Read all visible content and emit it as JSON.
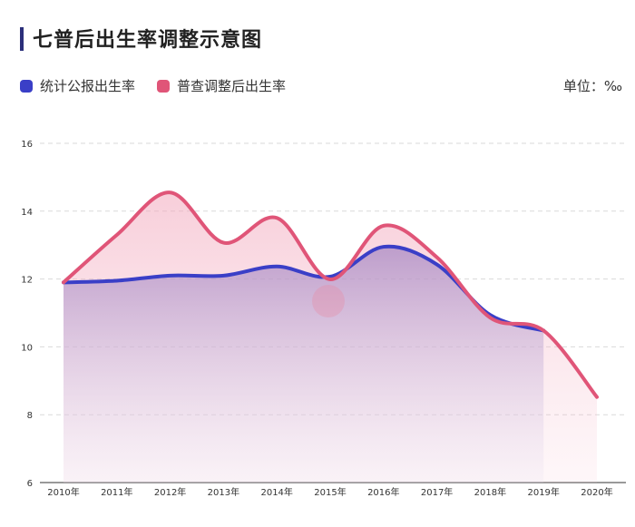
{
  "chart_data": {
    "type": "area",
    "title": "七普后出生率调整示意图",
    "unit_label": "单位：‰",
    "categories": [
      "2010年",
      "2011年",
      "2012年",
      "2013年",
      "2014年",
      "2015年",
      "2016年",
      "2017年",
      "2018年",
      "2019年",
      "2020年"
    ],
    "series": [
      {
        "name": "统计公报出生率",
        "color": "#3a3fc7",
        "values": [
          11.9,
          11.95,
          12.1,
          12.1,
          12.37,
          12.07,
          12.95,
          12.43,
          10.94,
          10.48,
          null
        ]
      },
      {
        "name": "普查调整后出生率",
        "color": "#e05578",
        "values": [
          11.9,
          13.3,
          14.55,
          13.07,
          13.8,
          11.99,
          13.57,
          12.64,
          10.86,
          10.48,
          8.52
        ]
      }
    ],
    "yticks": [
      6,
      8,
      10,
      12,
      14,
      16
    ],
    "ylim": [
      6,
      16
    ],
    "grid": true,
    "legend_position": "top-left"
  }
}
